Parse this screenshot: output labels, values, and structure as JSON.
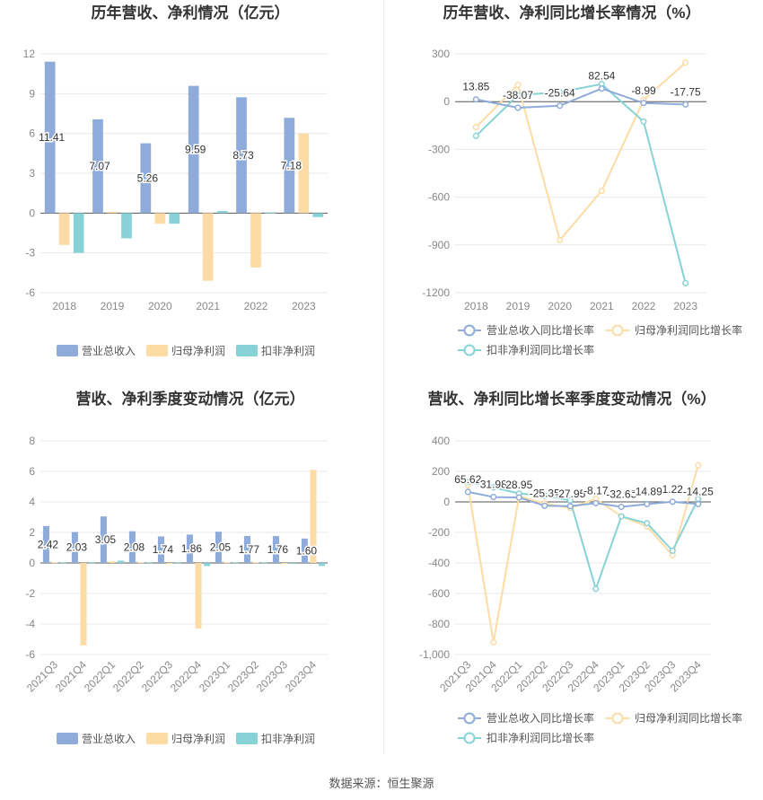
{
  "source": "数据来源：恒生聚源",
  "colors": {
    "revenue": "#8eabd9",
    "net_profit": "#fcdca4",
    "deducted_profit": "#87d2d6",
    "grid": "#e8e8e8",
    "axis_text": "#888888",
    "title": "#333333"
  },
  "chart_data": [
    {
      "id": "annual-values",
      "type": "bar",
      "title": "历年营收、净利情况（亿元）",
      "categories": [
        "2018",
        "2019",
        "2020",
        "2021",
        "2022",
        "2023"
      ],
      "ylim": [
        -6,
        12
      ],
      "yticks": [
        12,
        9,
        6,
        3,
        0,
        -3,
        -6
      ],
      "series": [
        {
          "name": "营业总收入",
          "color": "#8eabd9",
          "values": [
            11.41,
            7.07,
            5.26,
            9.59,
            8.73,
            7.18
          ],
          "labels": [
            "11.41",
            "7.07",
            "5.26",
            "9.59",
            "8.73",
            "7.18"
          ]
        },
        {
          "name": "归母净利润",
          "color": "#fcdca4",
          "values": [
            -2.4,
            0.1,
            -0.8,
            -5.1,
            -4.1,
            6.0
          ]
        },
        {
          "name": "扣非净利润",
          "color": "#87d2d6",
          "values": [
            -3.0,
            -1.9,
            -0.8,
            0.15,
            0.05,
            -0.3
          ]
        }
      ],
      "legend": "bottom"
    },
    {
      "id": "annual-growth",
      "type": "line",
      "title": "历年营收、净利同比增长率情况（%）",
      "categories": [
        "2018",
        "2019",
        "2020",
        "2021",
        "2022",
        "2023"
      ],
      "ylim": [
        -1200,
        300
      ],
      "yticks": [
        300,
        0,
        -300,
        -600,
        -900,
        -1200
      ],
      "series": [
        {
          "name": "营业总收入同比增长率",
          "color": "#8eabd9",
          "values": [
            13.85,
            -38.07,
            -25.64,
            82.54,
            -8.99,
            -17.75
          ],
          "labels": [
            "13.85",
            "-38.07",
            "-25.64",
            "82.54",
            "-8.99",
            "-17.75"
          ]
        },
        {
          "name": "归母净利润同比增长率",
          "color": "#fcdca4",
          "values": [
            -160,
            105,
            -870,
            -560,
            10,
            245
          ]
        },
        {
          "name": "扣非净利润同比增长率",
          "color": "#87d2d6",
          "values": [
            -215,
            40,
            60,
            110,
            -125,
            -1140
          ]
        }
      ],
      "legend": "bottom"
    },
    {
      "id": "quarterly-values",
      "type": "bar",
      "title": "营收、净利季度变动情况（亿元）",
      "categories": [
        "2021Q3",
        "2021Q4",
        "2022Q1",
        "2022Q2",
        "2022Q3",
        "2022Q4",
        "2023Q1",
        "2023Q2",
        "2023Q3",
        "2023Q4"
      ],
      "ylim": [
        -6,
        8
      ],
      "yticks": [
        8,
        6,
        4,
        2,
        0,
        -2,
        -4,
        -6
      ],
      "series": [
        {
          "name": "营业总收入",
          "color": "#8eabd9",
          "values": [
            2.42,
            2.03,
            3.05,
            2.08,
            1.74,
            1.86,
            2.05,
            1.77,
            1.76,
            1.6
          ],
          "labels": [
            "2.42",
            "2.03",
            "3.05",
            "2.08",
            "1.74",
            "1.86",
            "2.05",
            "1.77",
            "1.76",
            "1.60"
          ]
        },
        {
          "name": "归母净利润",
          "color": "#fcdca4",
          "values": [
            0.05,
            -5.4,
            0.1,
            0.05,
            -0.05,
            -4.3,
            0.05,
            0.05,
            -0.05,
            6.1
          ]
        },
        {
          "name": "扣非净利润",
          "color": "#87d2d6",
          "values": [
            0.05,
            0.05,
            0.15,
            0.05,
            0.05,
            -0.2,
            0.05,
            0.05,
            -0.05,
            -0.2
          ]
        }
      ],
      "legend": "bottom"
    },
    {
      "id": "quarterly-growth",
      "type": "line",
      "title": "营收、净利同比增长率季度变动情况（%）",
      "categories": [
        "2021Q3",
        "2021Q4",
        "2022Q1",
        "2022Q2",
        "2022Q3",
        "2022Q4",
        "2023Q1",
        "2023Q2",
        "2023Q3",
        "2023Q4"
      ],
      "ylim": [
        -1000,
        400
      ],
      "yticks": [
        400,
        200,
        0,
        -200,
        -400,
        -600,
        -800,
        -1000
      ],
      "ytick_labels": [
        "400",
        "200",
        "0",
        "-200",
        "-400",
        "-600",
        "-800",
        "-1,000"
      ],
      "series": [
        {
          "name": "营业总收入同比增长率",
          "color": "#8eabd9",
          "values": [
            65.62,
            31.98,
            28.95,
            -25.35,
            -27.95,
            -8.17,
            -32.65,
            -14.89,
            1.22,
            -14.25
          ],
          "labels": [
            "65.62",
            "31.98",
            "28.95",
            "-25.35",
            "-27.95",
            "-8.17",
            "-32.65",
            "-14.89",
            "1.22",
            "-14.25"
          ]
        },
        {
          "name": "归母净利润同比增长率",
          "color": "#fcdca4",
          "values": [
            110,
            -920,
            35,
            -10,
            -40,
            20,
            -95,
            -160,
            -350,
            240
          ]
        },
        {
          "name": "扣非净利润同比增长率",
          "color": "#87d2d6",
          "values": [
            130,
            95,
            55,
            40,
            10,
            -570,
            -95,
            -140,
            -320,
            20
          ]
        }
      ],
      "legend": "bottom"
    }
  ]
}
